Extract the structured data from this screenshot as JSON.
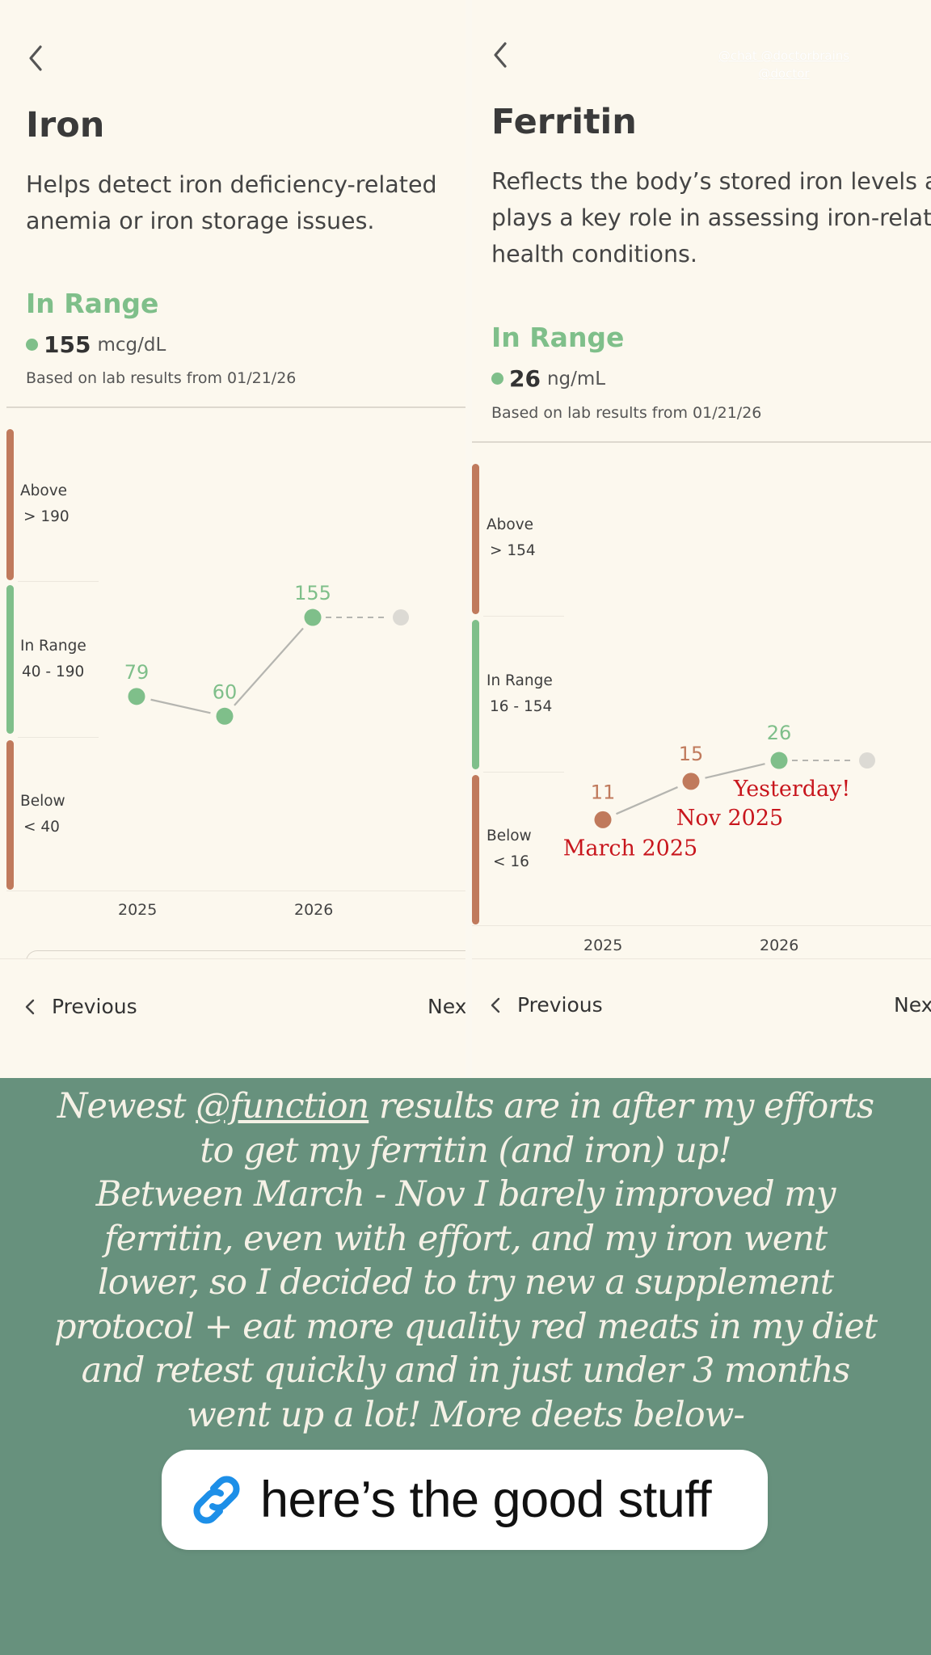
{
  "watermark": "@chat @doctorbrains @doctor",
  "panels": [
    {
      "id": "iron",
      "title": "Iron",
      "description": "Helps detect iron deficiency-related anemia or iron storage issues.",
      "status": "In Range",
      "value": "155",
      "unit": "mcg/dL",
      "basis": "Based on lab results from 01/21/26",
      "bands": [
        {
          "name": "Above",
          "range": "> 190",
          "color": "#c07a5c"
        },
        {
          "name": "In Range",
          "range": "40 - 190",
          "color": "#7fbf8a"
        },
        {
          "name": "Below",
          "range": "< 40",
          "color": "#c07a5c"
        }
      ],
      "years": [
        "2025",
        "2026"
      ],
      "previous_label": "Previous",
      "next_label": "Nex"
    },
    {
      "id": "ferritin",
      "title": "Ferritin",
      "description": "Reflects the body's stored iron levels and plays a key role in assessing iron-related health conditions.",
      "status": "In Range",
      "value": "26",
      "unit": "ng/mL",
      "basis": "Based on lab results from 01/21/26",
      "bands": [
        {
          "name": "Above",
          "range": "> 154",
          "color": "#c07a5c"
        },
        {
          "name": "In Range",
          "range": "16 - 154",
          "color": "#7fbf8a"
        },
        {
          "name": "Below",
          "range": "< 16",
          "color": "#c07a5c"
        }
      ],
      "years": [
        "2025",
        "2026"
      ],
      "previous_label": "Previous",
      "next_label": "Nex"
    }
  ],
  "chart_data": [
    {
      "type": "line",
      "title": "Iron",
      "unit": "mcg/dL",
      "x": [
        "2025",
        "",
        "2026"
      ],
      "values": [
        79,
        60,
        155
      ],
      "point_status": [
        "In Range",
        "In Range",
        "In Range"
      ],
      "bands": [
        {
          "name": "Below",
          "range": "< 40"
        },
        {
          "name": "In Range",
          "range": "40 - 190"
        },
        {
          "name": "Above",
          "range": "> 190"
        }
      ],
      "next_placeholder": true,
      "annotations": []
    },
    {
      "type": "line",
      "title": "Ferritin",
      "unit": "ng/mL",
      "x": [
        "2025",
        "",
        "2026"
      ],
      "values": [
        11,
        15,
        26
      ],
      "point_status": [
        "Below",
        "Below",
        "In Range"
      ],
      "bands": [
        {
          "name": "Below",
          "range": "< 16"
        },
        {
          "name": "In Range",
          "range": "16 - 154"
        },
        {
          "name": "Above",
          "range": "> 154"
        }
      ],
      "next_placeholder": true,
      "annotations": [
        "March 2025",
        "Nov 2025",
        "Yesterday!"
      ]
    }
  ],
  "colors": {
    "in_range": "#7fbf8a",
    "out_of_range": "#c07a5c",
    "placeholder": "#dcdad4",
    "annotation": "#c8161d",
    "caption_bg": "#67917d"
  },
  "caption": {
    "mention": "@function",
    "lines": [
      "Newest @function results are in after my efforts",
      "to get my ferritin (and iron) up!",
      "Between March - Nov I barely improved my",
      "ferritin, even with effort, and my iron went",
      "lower, so I decided to try new a supplement",
      "protocol + eat more quality red meats in my diet",
      "and retest quickly and in just under 3 months",
      "went up a lot! More deets below-"
    ]
  },
  "link_sticker": {
    "icon": "link-icon",
    "label": "here’s the good stuff"
  }
}
